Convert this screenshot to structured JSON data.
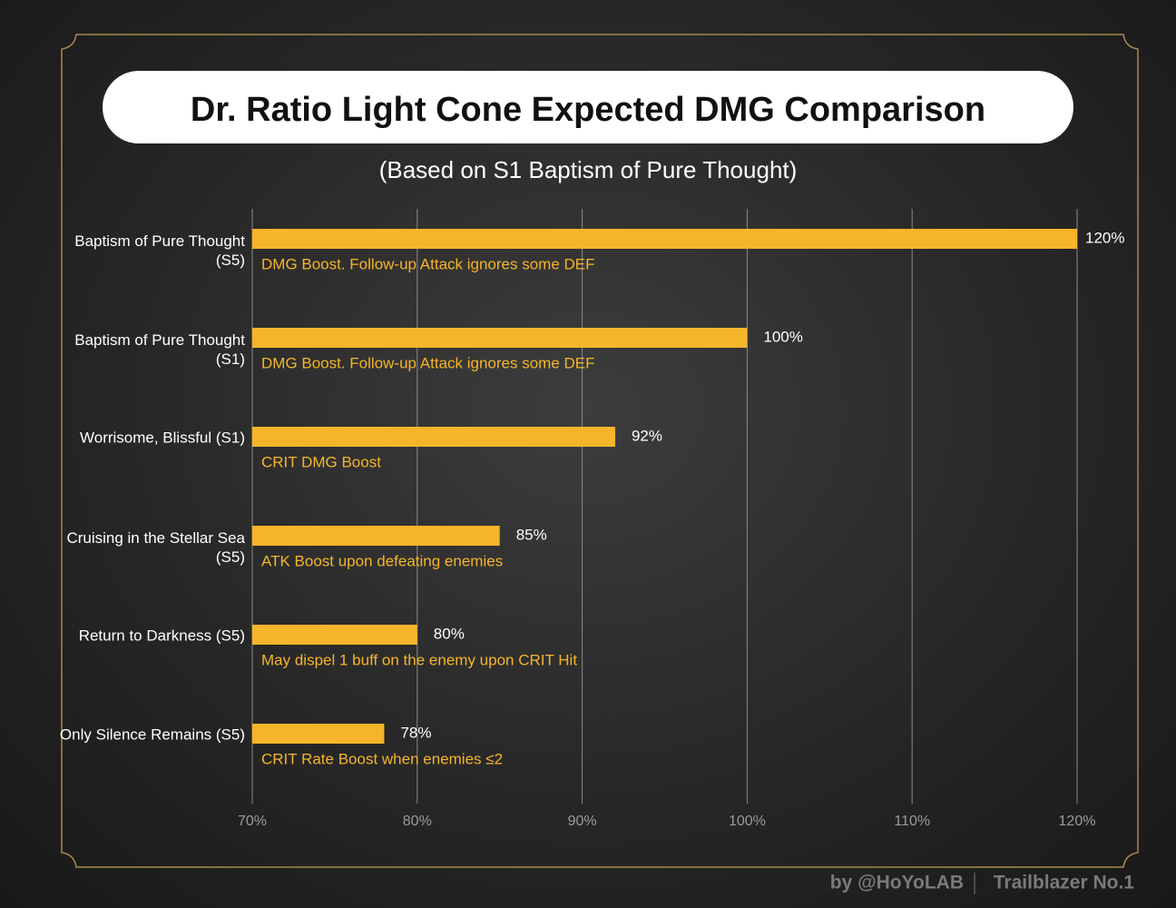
{
  "chart_data": {
    "type": "bar",
    "orientation": "horizontal",
    "title": "Dr. Ratio Light Cone Expected DMG Comparison",
    "subtitle": "(Based on S1 Baptism of Pure Thought)",
    "categories": [
      "Baptism of Pure Thought\n(S5)",
      "Baptism of Pure Thought\n(S1)",
      "Worrisome, Blissful (S1)",
      "Cruising in the Stellar Sea\n(S5)",
      "Return to Darkness (S5)",
      "Only Silence Remains (S5)"
    ],
    "values": [
      120,
      100,
      92,
      85,
      80,
      78
    ],
    "value_labels": [
      "120%",
      "100%",
      "92%",
      "85%",
      "80%",
      "78%"
    ],
    "descriptions": [
      "DMG Boost. Follow-up Attack ignores some DEF",
      "DMG Boost. Follow-up Attack ignores some DEF",
      "CRIT DMG Boost",
      "ATK Boost upon defeating enemies",
      "May dispel 1 buff on the enemy upon CRIT Hit",
      "CRIT Rate Boost when enemies ≤2"
    ],
    "color": "#f5b52a",
    "xlim": [
      70,
      120
    ],
    "xticks": [
      {
        "value": 70,
        "label": "70%"
      },
      {
        "value": 80,
        "label": "80%"
      },
      {
        "value": 90,
        "label": "90%"
      },
      {
        "value": 100,
        "label": "100%"
      },
      {
        "value": 110,
        "label": "110%"
      },
      {
        "value": 120,
        "label": "120%"
      }
    ],
    "grid": true,
    "credits": [
      "by @HoYoLAB",
      "Trailblazer No.1"
    ]
  }
}
